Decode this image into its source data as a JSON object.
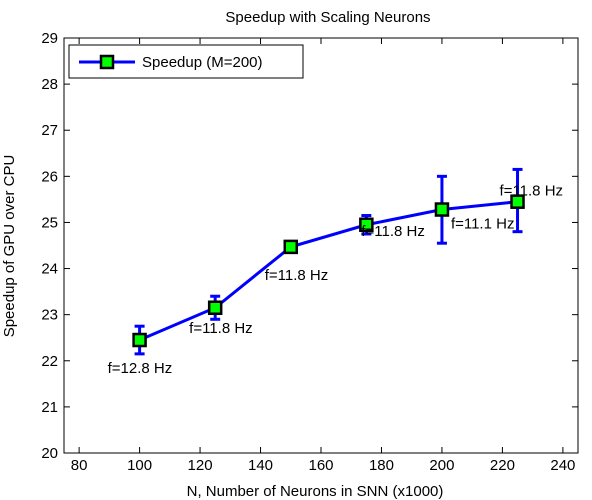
{
  "chart_data": {
    "type": "line",
    "title": "Speedup with Scaling Neurons",
    "xlabel": "N, Number of Neurons in SNN (x1000)",
    "ylabel": "Speedup of GPU over CPU",
    "xlim": [
      75,
      245
    ],
    "ylim": [
      20,
      29
    ],
    "xticks": [
      80,
      100,
      120,
      140,
      160,
      180,
      200,
      220,
      240
    ],
    "yticks": [
      20,
      21,
      22,
      23,
      24,
      25,
      26,
      27,
      28,
      29
    ],
    "grid": false,
    "legend_position": "top-left",
    "series": [
      {
        "name": "Speedup (M=200)",
        "line_color": "#0000ff",
        "marker_fill": "#00ff00",
        "marker_edge": "#000000",
        "error_color": "#0000ff",
        "points": [
          {
            "x": 100,
            "y": 22.45,
            "err_low": 22.15,
            "err_high": 22.75,
            "label": "f=12.8 Hz"
          },
          {
            "x": 125,
            "y": 23.15,
            "err_low": 22.9,
            "err_high": 23.4,
            "label": "f=11.8 Hz"
          },
          {
            "x": 150,
            "y": 24.47,
            "err_low": 24.4,
            "err_high": 24.55,
            "label": "f=11.8 Hz"
          },
          {
            "x": 175,
            "y": 24.95,
            "err_low": 24.75,
            "err_high": 25.15,
            "label": "f=11.8 Hz"
          },
          {
            "x": 200,
            "y": 25.28,
            "err_low": 24.55,
            "err_high": 26.0,
            "label": "f=11.1 Hz"
          },
          {
            "x": 225,
            "y": 25.45,
            "err_low": 24.8,
            "err_high": 26.15,
            "label": "f=11.8 Hz"
          }
        ]
      }
    ]
  }
}
